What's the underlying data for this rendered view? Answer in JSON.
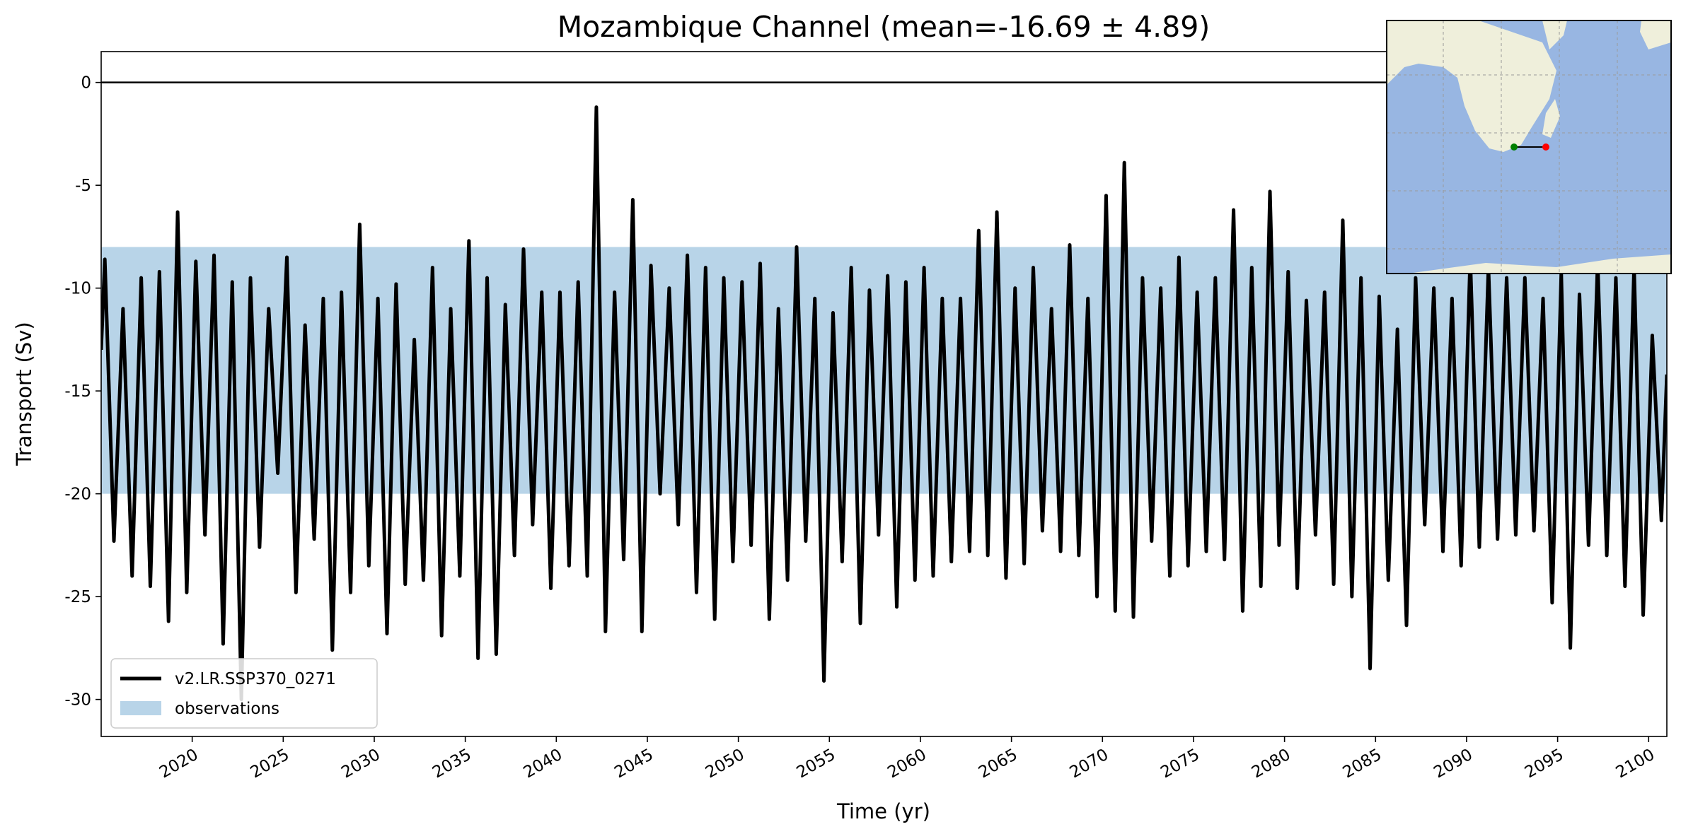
{
  "chart_data": {
    "type": "line",
    "title": "Mozambique Channel (mean=-16.69 ± 4.89)",
    "x_label": "Time (yr)",
    "y_label": "Transport (Sv)",
    "xlim": [
      2015,
      2101
    ],
    "ylim": [
      -31.8,
      1.5
    ],
    "xticks": [
      2020,
      2025,
      2030,
      2035,
      2040,
      2045,
      2050,
      2055,
      2060,
      2065,
      2070,
      2075,
      2080,
      2085,
      2090,
      2095,
      2100
    ],
    "yticks": [
      0,
      -5,
      -10,
      -15,
      -20,
      -25,
      -30
    ],
    "reference_line": 0,
    "legend": "lower left",
    "bands": [
      {
        "name": "observations",
        "range": [
          -20,
          -8
        ],
        "color": "#b8d4e8"
      }
    ],
    "x": [
      2015,
      2015.2,
      2015.7,
      2016.2,
      2016.7,
      2017.2,
      2017.7,
      2018.2,
      2018.7,
      2019.2,
      2019.7,
      2020.2,
      2020.7,
      2021.2,
      2021.7,
      2022.2,
      2022.7,
      2023.2,
      2023.7,
      2024.2,
      2024.7,
      2025.2,
      2025.7,
      2026.2,
      2026.7,
      2027.2,
      2027.7,
      2028.2,
      2028.7,
      2029.2,
      2029.7,
      2030.2,
      2030.7,
      2031.2,
      2031.7,
      2032.2,
      2032.7,
      2033.2,
      2033.7,
      2034.2,
      2034.7,
      2035.2,
      2035.7,
      2036.2,
      2036.7,
      2037.2,
      2037.7,
      2038.2,
      2038.7,
      2039.2,
      2039.7,
      2040.2,
      2040.7,
      2041.2,
      2041.7,
      2042.2,
      2042.7,
      2043.2,
      2043.7,
      2044.2,
      2044.7,
      2045.2,
      2045.7,
      2046.2,
      2046.7,
      2047.2,
      2047.7,
      2048.2,
      2048.7,
      2049.2,
      2049.7,
      2050.2,
      2050.7,
      2051.2,
      2051.7,
      2052.2,
      2052.7,
      2053.2,
      2053.7,
      2054.2,
      2054.7,
      2055.2,
      2055.7,
      2056.2,
      2056.7,
      2057.2,
      2057.7,
      2058.2,
      2058.7,
      2059.2,
      2059.7,
      2060.2,
      2060.7,
      2061.2,
      2061.7,
      2062.2,
      2062.7,
      2063.2,
      2063.7,
      2064.2,
      2064.7,
      2065.2,
      2065.7,
      2066.2,
      2066.7,
      2067.2,
      2067.7,
      2068.2,
      2068.7,
      2069.2,
      2069.7,
      2070.2,
      2070.7,
      2071.2,
      2071.7,
      2072.2,
      2072.7,
      2073.2,
      2073.7,
      2074.2,
      2074.7,
      2075.2,
      2075.7,
      2076.2,
      2076.7,
      2077.2,
      2077.7,
      2078.2,
      2078.7,
      2079.2,
      2079.7,
      2080.2,
      2080.7,
      2081.2,
      2081.7,
      2082.2,
      2082.7,
      2083.2,
      2083.7,
      2084.2,
      2084.7,
      2085.2,
      2085.7,
      2086.2,
      2086.7,
      2087.2,
      2087.7,
      2088.2,
      2088.7,
      2089.2,
      2089.7,
      2090.2,
      2090.7,
      2091.2,
      2091.7,
      2092.2,
      2092.7,
      2093.2,
      2093.7,
      2094.2,
      2094.7,
      2095.2,
      2095.7,
      2096.2,
      2096.7,
      2097.2,
      2097.7,
      2098.2,
      2098.7,
      2099.2,
      2099.7,
      2100.2,
      2100.7,
      2101
    ],
    "series": [
      {
        "name": "v2.LR.SSP370_0271",
        "color": "#000000",
        "values": [
          -13,
          -8.6,
          -22.3,
          -11,
          -24,
          -9.5,
          -24.5,
          -9.2,
          -26.2,
          -6.3,
          -24.8,
          -8.7,
          -22,
          -8.4,
          -27.3,
          -9.7,
          -30,
          -9.5,
          -22.6,
          -11,
          -19,
          -8.5,
          -24.8,
          -11.8,
          -22.2,
          -10.5,
          -27.6,
          -10.2,
          -24.8,
          -6.9,
          -23.5,
          -10.5,
          -26.8,
          -9.8,
          -24.4,
          -12.5,
          -24.2,
          -9,
          -26.9,
          -11,
          -24,
          -7.7,
          -28,
          -9.5,
          -27.8,
          -10.8,
          -23,
          -8.1,
          -21.5,
          -10.2,
          -24.6,
          -10.2,
          -23.5,
          -9.7,
          -24,
          -1.2,
          -26.7,
          -10.2,
          -23.2,
          -5.7,
          -26.7,
          -8.9,
          -20,
          -10,
          -21.5,
          -8.4,
          -24.8,
          -9,
          -26.1,
          -9.5,
          -23.3,
          -9.7,
          -22.5,
          -8.8,
          -26.1,
          -11,
          -24.2,
          -8,
          -22.3,
          -10.5,
          -29.1,
          -11.2,
          -23.3,
          -9,
          -26.3,
          -10.1,
          -22,
          -9.4,
          -25.5,
          -9.7,
          -24.2,
          -9,
          -24,
          -10.5,
          -23.3,
          -10.5,
          -22.8,
          -7.2,
          -23,
          -6.3,
          -24.1,
          -10,
          -23.4,
          -9,
          -21.8,
          -11,
          -22.8,
          -7.9,
          -23,
          -10.5,
          -25,
          -5.5,
          -25.7,
          -3.9,
          -26,
          -9.5,
          -22.3,
          -10,
          -24,
          -8.5,
          -23.5,
          -10.2,
          -22.8,
          -9.5,
          -23.2,
          -6.2,
          -25.7,
          -9,
          -24.5,
          -5.3,
          -22.5,
          -9.2,
          -24.6,
          -10.6,
          -22,
          -10.2,
          -24.4,
          -6.7,
          -25,
          -9.5,
          -28.5,
          -10.4,
          -24.2,
          -12,
          -26.4,
          -9.5,
          -21.5,
          -10,
          -22.8,
          -10.5,
          -23.5,
          -8.5,
          -22.6,
          -9,
          -22.2,
          -9.5,
          -22,
          -9.5,
          -21.8,
          -10.5,
          -25.3,
          -9.3,
          -27.5,
          -10.3,
          -22.5,
          -8.7,
          -23,
          -9.5,
          -24.5,
          -9,
          -25.9,
          -12.3,
          -21.3,
          -14.2
        ]
      }
    ]
  }
}
